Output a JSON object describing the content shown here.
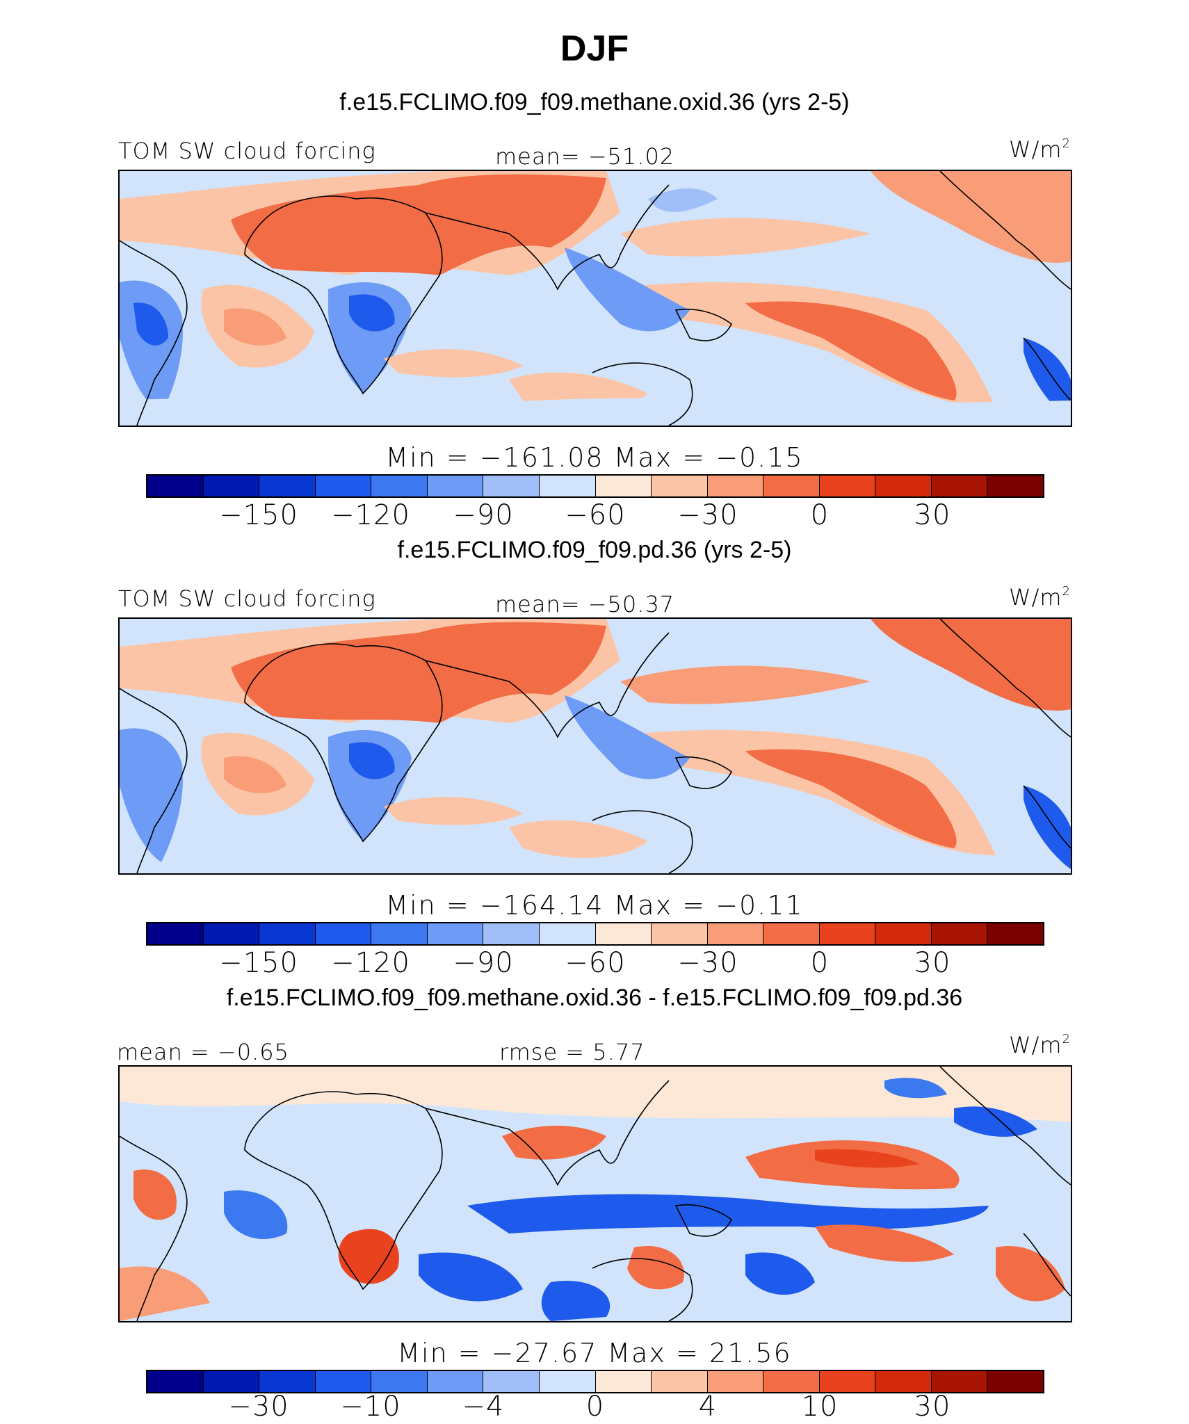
{
  "title": "DJF",
  "units": "W/m",
  "units_superscript": "2",
  "colorbar_colors": [
    "#00008b",
    "#0019b0",
    "#0a37d2",
    "#1e5aeb",
    "#3c78f0",
    "#6e9bf5",
    "#a0bef7",
    "#d2e4fb",
    "#fde8d8",
    "#fcc4a6",
    "#f99d78",
    "#f26d45",
    "#e8431e",
    "#d22a0a",
    "#a81505",
    "#7a0000"
  ],
  "panels": [
    {
      "case_title": "f.e15.FCLIMO.f09_f09.methane.oxid.36 (yrs 2-5)",
      "left_label": "TOM SW cloud forcing",
      "center_label": "mean= −51.02",
      "min_max": "Min = −161.08 Max =  −0.15",
      "ticks": [
        "−150",
        "−120",
        "−90",
        "−60",
        "−30",
        "0",
        "30"
      ]
    },
    {
      "case_title": "f.e15.FCLIMO.f09_f09.pd.36 (yrs 2-5)",
      "left_label": "TOM SW cloud forcing",
      "center_label": "mean= −50.37",
      "min_max": "Min = −164.14 Max =  −0.11",
      "ticks": [
        "−150",
        "−120",
        "−90",
        "−60",
        "−30",
        "0",
        "30"
      ]
    },
    {
      "case_title": "f.e15.FCLIMO.f09_f09.methane.oxid.36 - f.e15.FCLIMO.f09_f09.pd.36",
      "left_label": "mean =  −0.65",
      "center_label": "rmse =   5.77",
      "min_max": "Min = −27.67 Max =  21.56",
      "ticks": [
        "−30",
        "−10",
        "−4",
        "0",
        "4",
        "10",
        "30"
      ]
    }
  ]
}
